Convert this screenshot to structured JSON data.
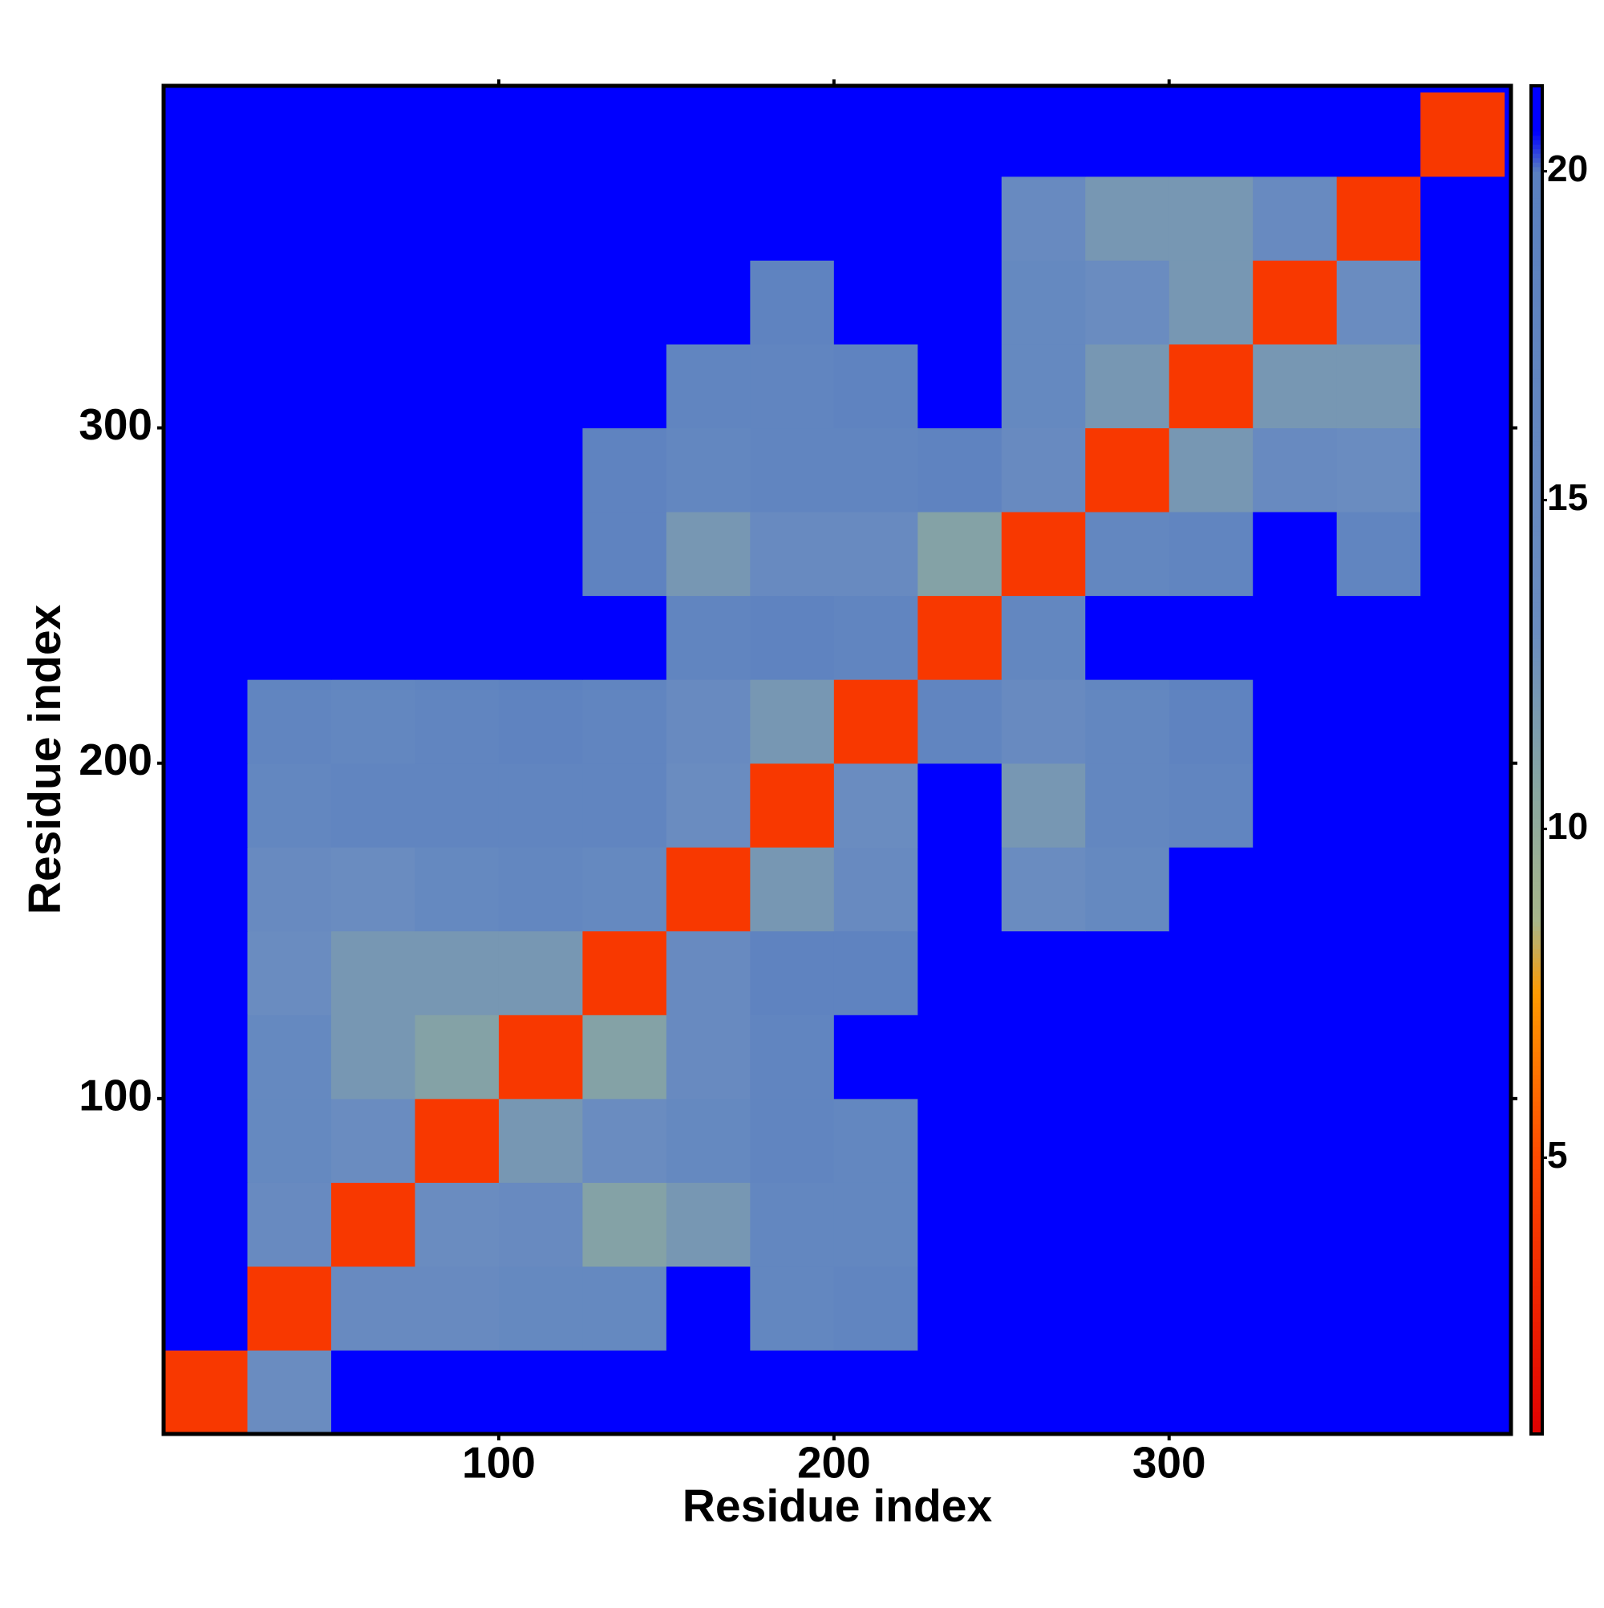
{
  "chart_data": {
    "type": "heatmap",
    "x_label": "Residue index",
    "y_label": "Residue index",
    "xlim": [
      0,
      402
    ],
    "ylim": [
      0,
      402
    ],
    "xticks": [
      100,
      200,
      300
    ],
    "yticks": [
      100,
      200,
      300
    ],
    "x_bins": [
      0,
      25,
      50,
      75,
      100,
      125,
      150,
      175,
      200,
      225,
      250,
      275,
      300,
      325,
      350,
      375,
      400
    ],
    "y_bins": [
      0,
      25,
      50,
      75,
      100,
      125,
      150,
      175,
      200,
      225,
      250,
      275,
      300,
      325,
      350,
      375,
      400
    ],
    "values": [
      [
        4,
        13,
        21,
        21,
        21,
        21,
        21,
        21,
        21,
        21,
        21,
        21,
        21,
        21,
        21,
        21
      ],
      [
        21,
        4,
        14,
        14,
        15,
        15,
        21,
        16,
        17,
        21,
        21,
        21,
        21,
        21,
        21,
        21
      ],
      [
        21,
        14,
        4,
        13,
        14,
        11,
        12,
        16,
        16,
        21,
        21,
        21,
        21,
        21,
        21,
        21
      ],
      [
        21,
        15,
        13,
        4,
        12,
        13,
        15,
        17,
        16,
        21,
        21,
        21,
        21,
        21,
        21,
        21
      ],
      [
        21,
        15,
        12,
        11,
        4,
        11,
        14,
        17,
        21,
        21,
        21,
        21,
        21,
        21,
        21,
        21
      ],
      [
        21,
        13,
        12,
        12,
        12,
        4,
        14,
        18,
        18,
        21,
        21,
        21,
        21,
        21,
        21,
        21
      ],
      [
        21,
        14,
        13,
        15,
        16,
        15,
        4,
        12,
        14,
        21,
        13,
        15,
        21,
        21,
        21,
        21
      ],
      [
        21,
        16,
        17,
        17,
        17,
        17,
        13,
        4,
        13,
        21,
        12,
        16,
        17,
        21,
        21,
        21
      ],
      [
        21,
        17,
        16,
        17,
        18,
        17,
        14,
        12,
        4,
        17,
        14,
        16,
        18,
        21,
        21,
        21
      ],
      [
        21,
        21,
        21,
        21,
        21,
        21,
        17,
        18,
        17,
        4,
        16,
        21,
        21,
        21,
        21,
        21
      ],
      [
        21,
        21,
        21,
        21,
        21,
        18,
        12,
        14,
        14,
        11,
        4,
        16,
        17,
        21,
        17,
        21
      ],
      [
        21,
        21,
        21,
        21,
        21,
        18,
        16,
        17,
        17,
        18,
        14,
        4,
        12,
        14,
        13,
        21
      ],
      [
        21,
        21,
        21,
        21,
        21,
        21,
        17,
        17,
        18,
        21,
        15,
        12,
        4,
        12,
        12,
        21
      ],
      [
        21,
        21,
        21,
        21,
        21,
        21,
        21,
        18,
        21,
        21,
        15,
        13,
        12,
        4,
        13,
        21
      ],
      [
        21,
        21,
        21,
        21,
        21,
        21,
        21,
        21,
        21,
        21,
        14,
        12,
        12,
        14,
        4,
        21
      ],
      [
        21,
        21,
        21,
        21,
        21,
        21,
        21,
        21,
        21,
        21,
        21,
        21,
        21,
        21,
        21,
        4
      ]
    ],
    "zlim": [
      0.8,
      21.3
    ],
    "colorbar_ticks": [
      5,
      10,
      15,
      20
    ],
    "colorscale": [
      [
        0.8,
        "#e00000"
      ],
      [
        5,
        "#ff4a00"
      ],
      [
        7.5,
        "#ff9a00"
      ],
      [
        8.6,
        "#a8b68a"
      ],
      [
        10.5,
        "#8aa8a0"
      ],
      [
        13,
        "#6a8cc0"
      ],
      [
        20,
        "#5a80c0"
      ],
      [
        20.6,
        "#0000ff"
      ],
      [
        21.3,
        "#0000ff"
      ]
    ],
    "background": "#0000ff"
  }
}
